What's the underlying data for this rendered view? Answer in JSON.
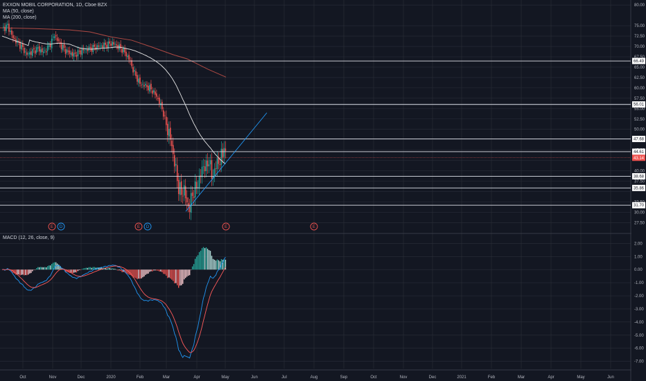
{
  "legend": {
    "symbol": "EXXON MOBIL CORPORATION, 1D, Cboe BZX",
    "ma50": "MA (50, close)",
    "ma200": "MA (200, close)",
    "macd": "MACD (12, 26, close, 9)"
  },
  "colors": {
    "background": "#131722",
    "grid": "#2a2e39",
    "up": "#26a69a",
    "down": "#ef5350",
    "ma50": "#e8e8e8",
    "ma200": "#b04a44",
    "macd_line": "#2196f3",
    "signal_line": "#ff5b5b",
    "trendline": "#2196f3",
    "last_price": "#ef5350"
  },
  "chart_data": {
    "type": "candlestick",
    "price_axis": {
      "range": [
        27.5,
        80.0
      ],
      "ticks": [
        "80.00",
        "75.00",
        "72.50",
        "70.00",
        "67.50",
        "65.00",
        "62.50",
        "60.00",
        "57.50",
        "55.00",
        "52.50",
        "50.00",
        "45.00",
        "40.00",
        "37.50",
        "32.50",
        "30.00",
        "27.50"
      ]
    },
    "time_axis": {
      "labels": [
        "Oct",
        "Nov",
        "Dec",
        "2020",
        "Feb",
        "Mar",
        "Apr",
        "May",
        "Jun",
        "Jul",
        "Aug",
        "Sep",
        "Oct",
        "Nov",
        "Dec",
        "2021",
        "Feb",
        "Mar",
        "Apr",
        "May",
        "Jun"
      ]
    },
    "horizontal_levels": [
      {
        "label": "66.49",
        "value": 66.49
      },
      {
        "label": "56.01",
        "value": 56.01
      },
      {
        "label": "47.68",
        "value": 47.68
      },
      {
        "label": "44.61",
        "value": 44.61
      },
      {
        "label": "38.68",
        "value": 38.68
      },
      {
        "label": "35.86",
        "value": 35.86
      },
      {
        "label": "31.70",
        "value": 31.7
      }
    ],
    "last_price": {
      "label": "43.14",
      "value": 43.14
    },
    "trendline": {
      "from": {
        "date": "2020-03-23",
        "price": 30.2
      },
      "to": {
        "date": "2020-06-01",
        "price": 54.0
      }
    },
    "ma200_points": [
      [
        0,
        74.5
      ],
      [
        50,
        74.3
      ],
      [
        100,
        74.0
      ],
      [
        130,
        73.5
      ],
      [
        160,
        72.3
      ],
      [
        190,
        71.5
      ],
      [
        220,
        69.8
      ],
      [
        250,
        68.0
      ],
      [
        270,
        67.0
      ],
      [
        300,
        64.5
      ],
      [
        326,
        62.6
      ]
    ],
    "events": [
      {
        "type": "earnings",
        "label": "E",
        "date": "2019-11-01"
      },
      {
        "type": "dividend",
        "label": "D",
        "date": "2019-11-13"
      },
      {
        "type": "earnings",
        "label": "E",
        "date": "2020-01-31"
      },
      {
        "type": "dividend",
        "label": "D",
        "date": "2020-02-10"
      },
      {
        "type": "earnings",
        "label": "E",
        "date": "2020-05-01"
      },
      {
        "type": "earnings",
        "label": "E",
        "date": "2020-07-31"
      }
    ],
    "macd_axis": {
      "range": [
        -7.5,
        2.5
      ],
      "ticks": [
        "2.00",
        "1.00",
        "0.00",
        "-1.00",
        "-2.00",
        "-3.00",
        "-4.00",
        "-5.00",
        "-6.00",
        "-7.00"
      ]
    }
  }
}
